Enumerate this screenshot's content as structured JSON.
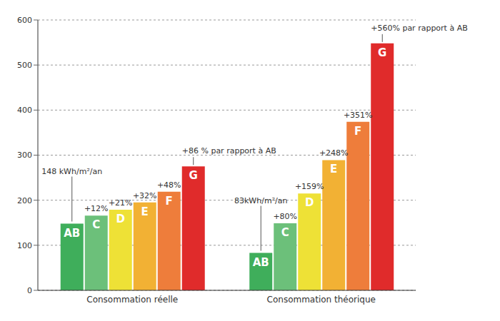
{
  "chart_data": {
    "type": "bar",
    "categories": [
      "Consommation réelle",
      "Consommation théorique"
    ],
    "series": [
      {
        "name": "AB",
        "color": "#3fae5b",
        "values": [
          148,
          83
        ],
        "annotations": [
          "148 kWh/m²/an",
          "83kWh/m²/an"
        ]
      },
      {
        "name": "C",
        "color": "#6cc07a",
        "values": [
          166,
          149
        ],
        "annotations": [
          "+12%",
          "+80%"
        ]
      },
      {
        "name": "D",
        "color": "#eee136",
        "values": [
          179,
          215
        ],
        "annotations": [
          "+21%",
          "+159%"
        ]
      },
      {
        "name": "E",
        "color": "#f2b134",
        "values": [
          195,
          289
        ],
        "annotations": [
          "+32%",
          "+248%"
        ]
      },
      {
        "name": "F",
        "color": "#ee7d3b",
        "values": [
          219,
          374
        ],
        "annotations": [
          "+48%",
          "+351%"
        ]
      },
      {
        "name": "G",
        "color": "#e02b2b",
        "values": [
          275,
          548
        ],
        "annotations": [
          "+86 % par rapport à AB",
          "+560% par rapport à AB"
        ]
      }
    ],
    "ylim": [
      0,
      600
    ],
    "yticks": [
      0,
      100,
      200,
      300,
      400,
      500,
      600
    ],
    "grid": true
  }
}
